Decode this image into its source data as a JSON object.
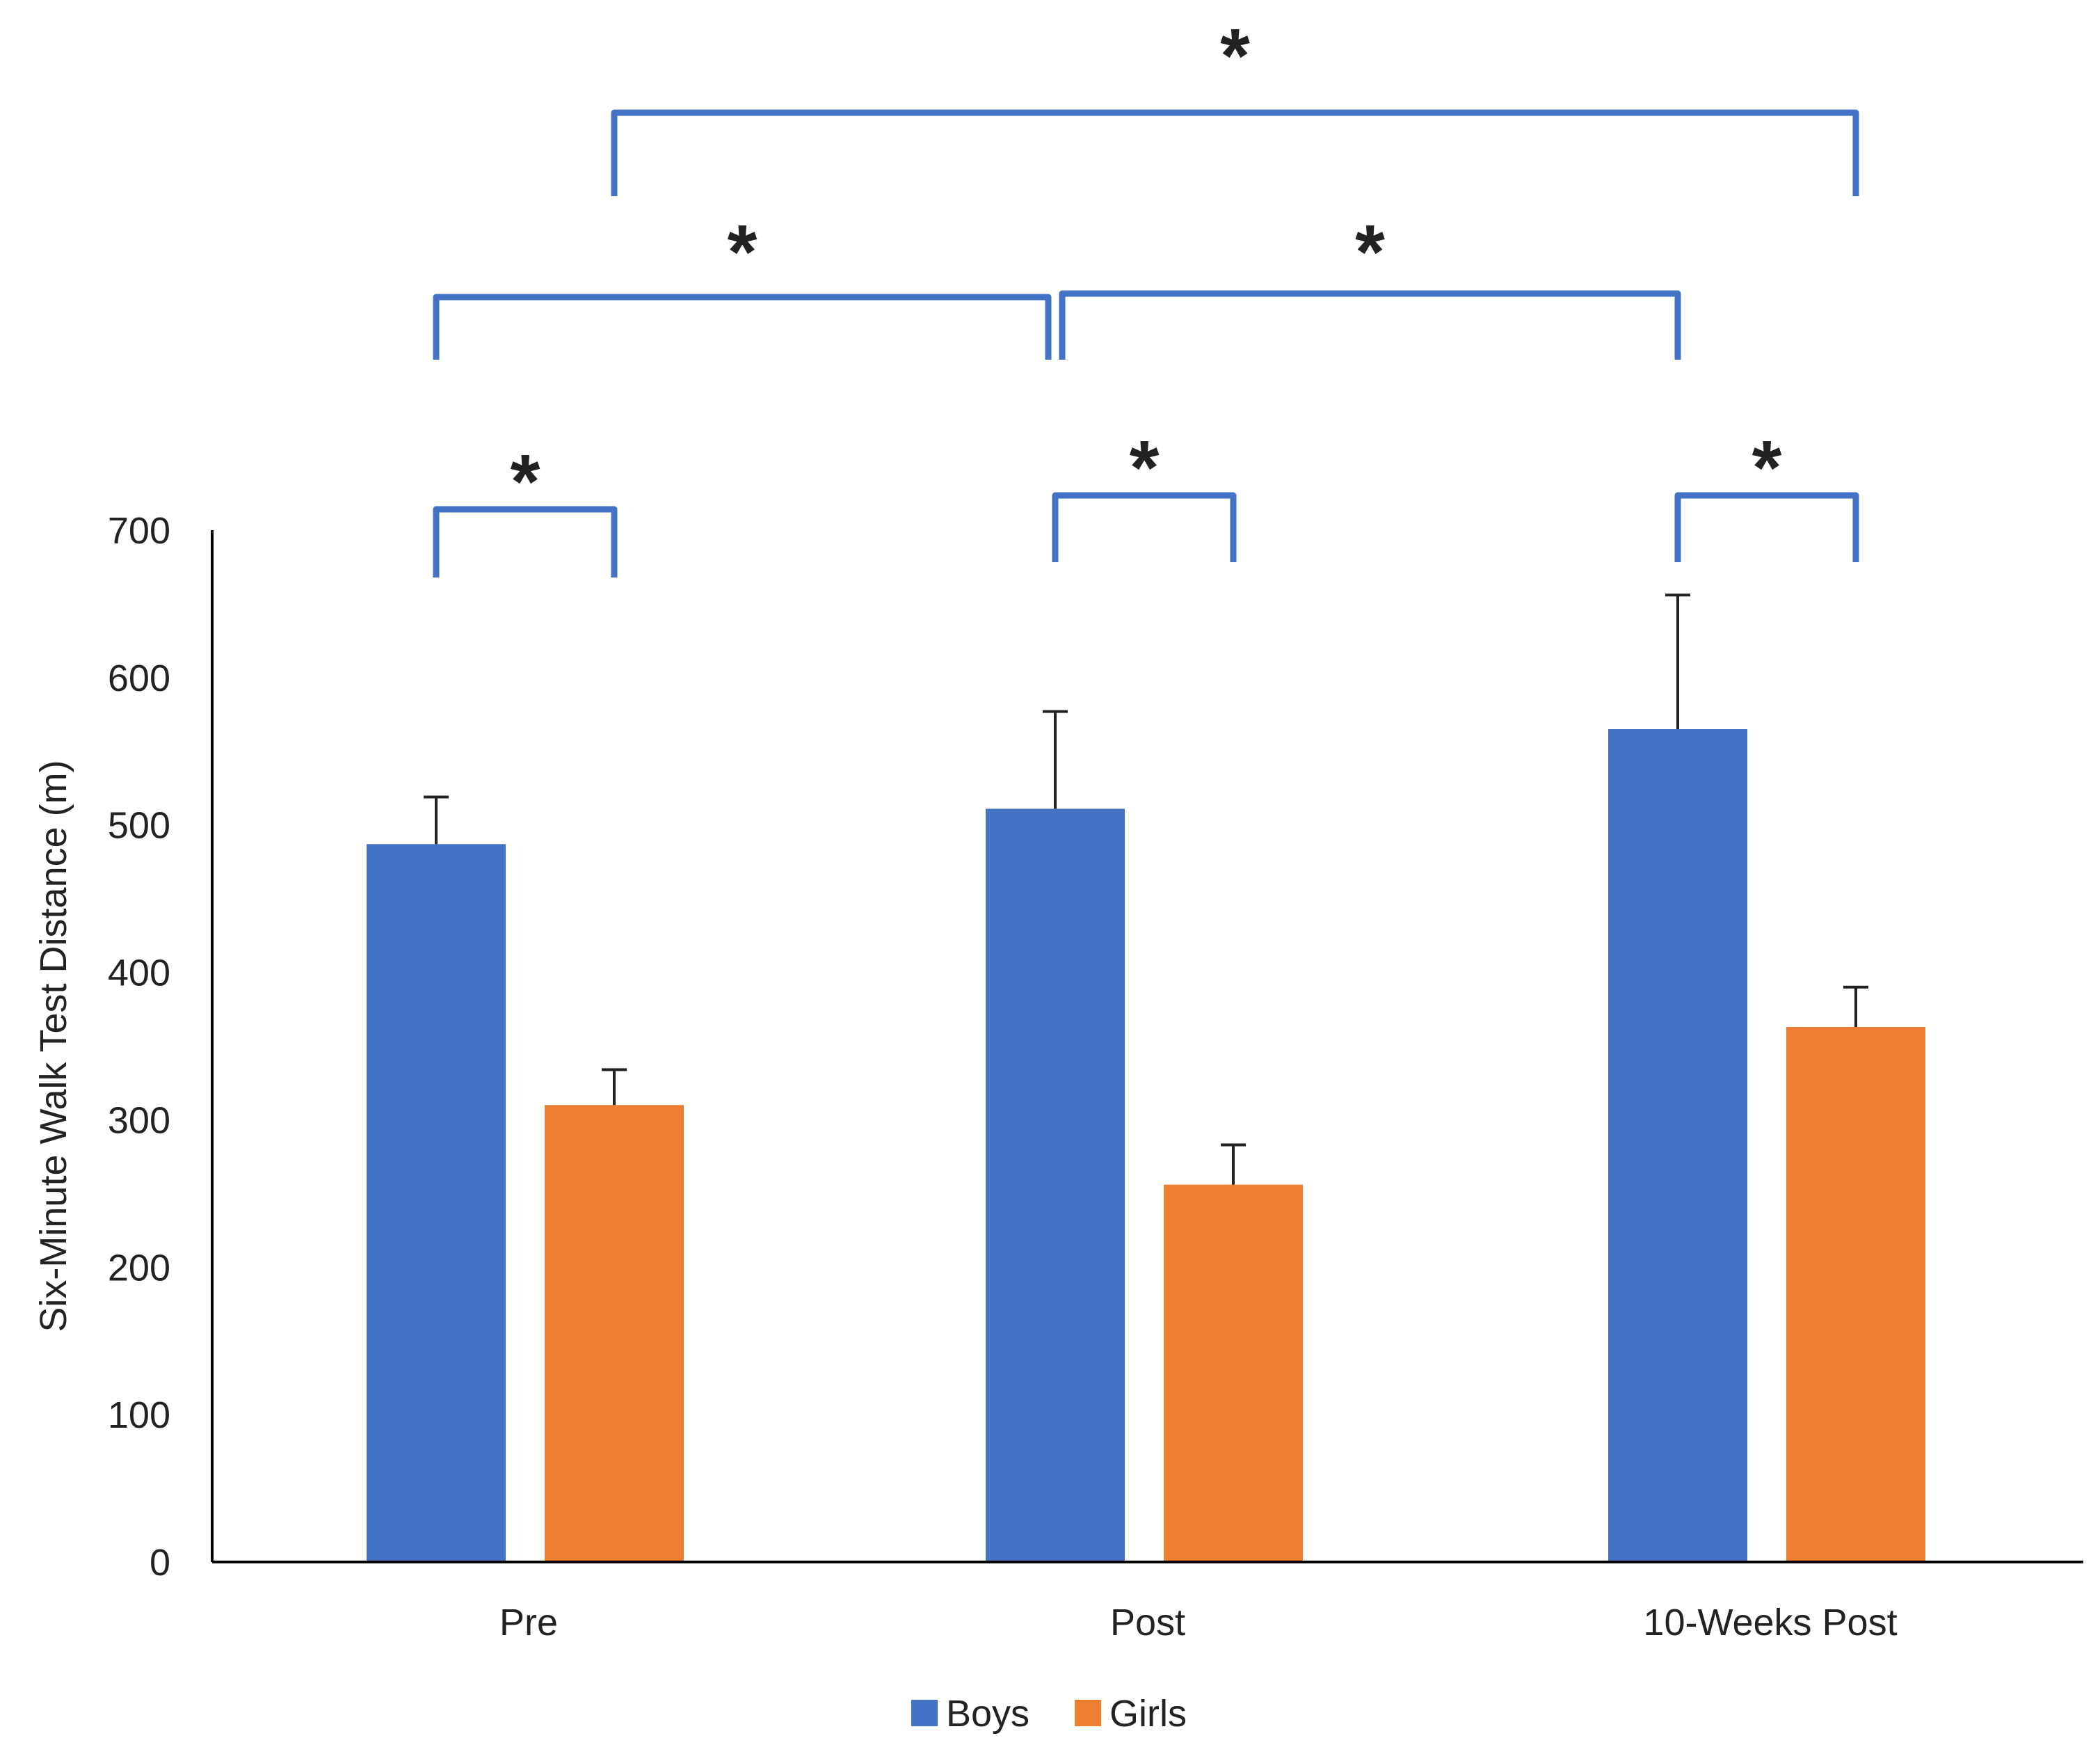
{
  "chart_data": {
    "type": "bar",
    "title": "",
    "xlabel": "",
    "ylabel": "Six-Minute Walk Test Distance (m)",
    "ylim": [
      0,
      700
    ],
    "yticks": [
      0,
      100,
      200,
      300,
      400,
      500,
      600,
      700
    ],
    "grid": false,
    "legend_position": "bottom",
    "categories": [
      "Pre",
      "Post",
      "10-Weeks Post"
    ],
    "series": [
      {
        "name": "Boys",
        "color": "#4472C4",
        "values": [
          487,
          511,
          565
        ],
        "errors": [
          32,
          66,
          91
        ]
      },
      {
        "name": "Girls",
        "color": "#ED7D31",
        "values": [
          310,
          256,
          363
        ],
        "errors": [
          24,
          27,
          27
        ]
      }
    ],
    "significance": {
      "marker": "*",
      "bracket_color": "#4472C4",
      "comparisons": [
        {
          "from": [
            "Pre",
            "Boys"
          ],
          "to": [
            "Pre",
            "Girls"
          ],
          "label": "*"
        },
        {
          "from": [
            "Post",
            "Boys"
          ],
          "to": [
            "Post",
            "Girls"
          ],
          "label": "*"
        },
        {
          "from": [
            "10-Weeks Post",
            "Boys"
          ],
          "to": [
            "10-Weeks Post",
            "Girls"
          ],
          "label": "*"
        },
        {
          "from": [
            "Pre",
            "Boys"
          ],
          "to": [
            "Post",
            "Boys"
          ],
          "label": "*"
        },
        {
          "from": [
            "Post",
            "Boys"
          ],
          "to": [
            "10-Weeks Post",
            "Boys"
          ],
          "label": "*"
        },
        {
          "from": [
            "Pre",
            "Girls"
          ],
          "to": [
            "10-Weeks Post",
            "Girls"
          ],
          "label": "*"
        }
      ]
    }
  }
}
